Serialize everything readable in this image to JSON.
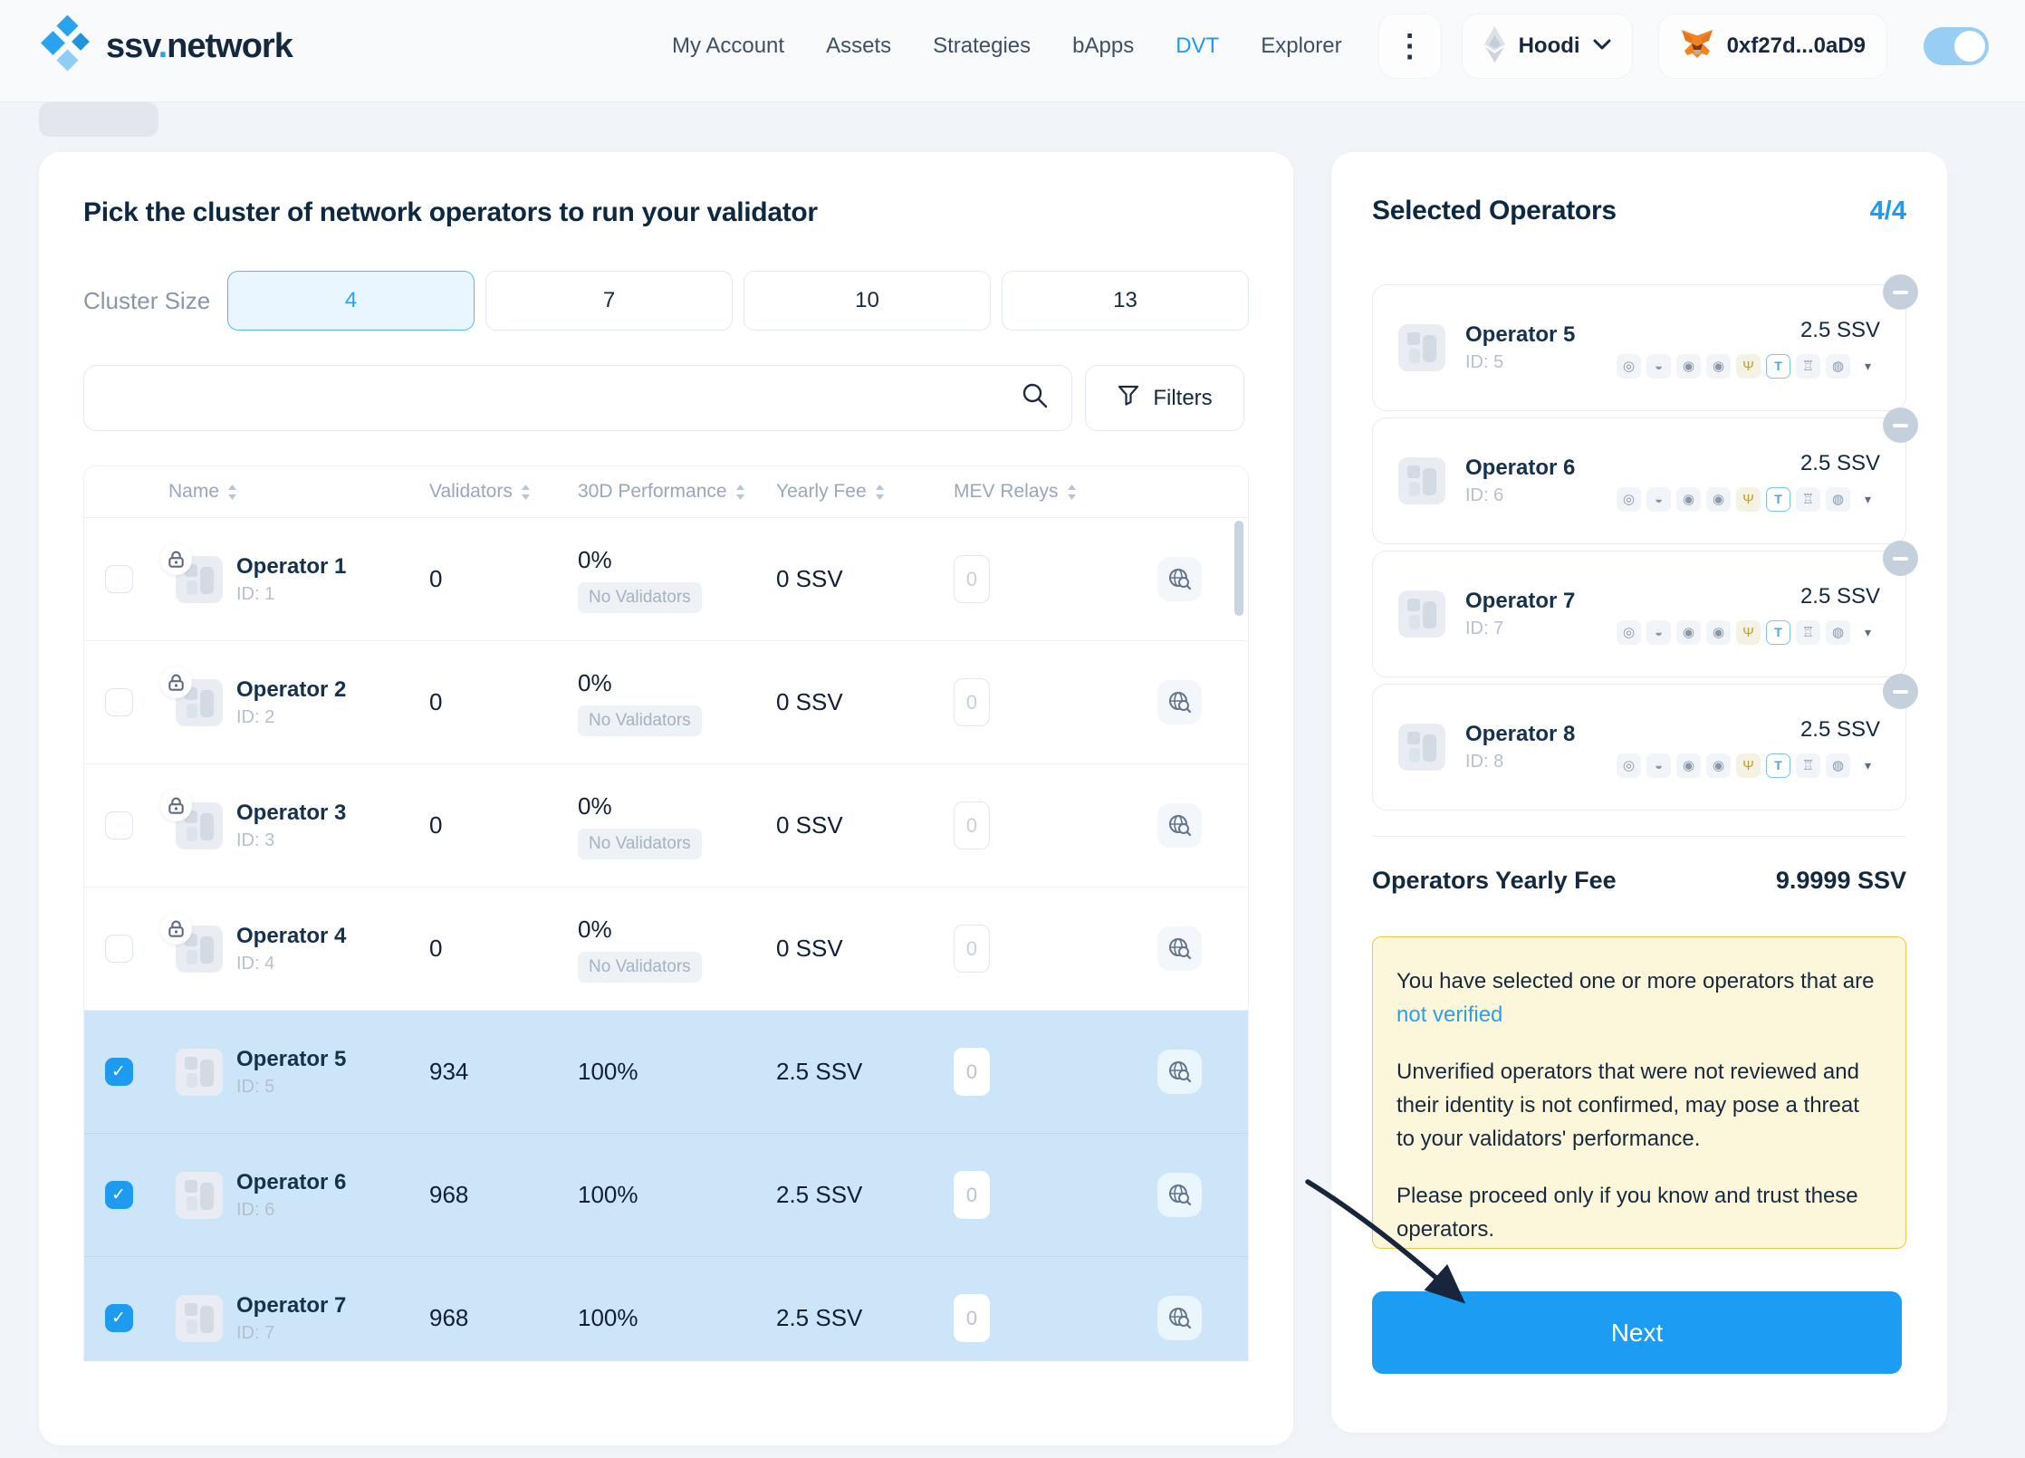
{
  "nav": {
    "logo": {
      "part1": "ssv",
      "dot": ".",
      "part2": "network"
    },
    "links": [
      {
        "label": "My Account",
        "active": false
      },
      {
        "label": "Assets",
        "active": false
      },
      {
        "label": "Strategies",
        "active": false
      },
      {
        "label": "bApps",
        "active": false
      },
      {
        "label": "DVT",
        "active": true
      },
      {
        "label": "Explorer",
        "active": false
      }
    ],
    "kebab": "⋮",
    "network": {
      "name": "Hoodi"
    },
    "wallet": {
      "address": "0xf27d...0aD9"
    }
  },
  "main": {
    "title": "Pick the cluster of network operators to run your validator",
    "cluster_size": {
      "label": "Cluster Size",
      "options": [
        {
          "value": "4",
          "selected": true
        },
        {
          "value": "7",
          "selected": false
        },
        {
          "value": "10",
          "selected": false
        },
        {
          "value": "13",
          "selected": false
        }
      ]
    },
    "search": {
      "placeholder": "",
      "value": ""
    },
    "filters_label": "Filters",
    "table": {
      "columns": [
        "Name",
        "Validators",
        "30D Performance",
        "Yearly Fee",
        "MEV Relays"
      ],
      "rows": [
        {
          "name": "Operator 1",
          "id": "ID: 1",
          "validators": "0",
          "performance": "0%",
          "badge": "No Validators",
          "fee": "0 SSV",
          "mev": "0",
          "selected": false,
          "locked": true
        },
        {
          "name": "Operator 2",
          "id": "ID: 2",
          "validators": "0",
          "performance": "0%",
          "badge": "No Validators",
          "fee": "0 SSV",
          "mev": "0",
          "selected": false,
          "locked": true
        },
        {
          "name": "Operator 3",
          "id": "ID: 3",
          "validators": "0",
          "performance": "0%",
          "badge": "No Validators",
          "fee": "0 SSV",
          "mev": "0",
          "selected": false,
          "locked": true
        },
        {
          "name": "Operator 4",
          "id": "ID: 4",
          "validators": "0",
          "performance": "0%",
          "badge": "No Validators",
          "fee": "0 SSV",
          "mev": "0",
          "selected": false,
          "locked": true
        },
        {
          "name": "Operator 5",
          "id": "ID: 5",
          "validators": "934",
          "performance": "100%",
          "badge": "",
          "fee": "2.5 SSV",
          "mev": "0",
          "selected": true,
          "locked": false
        },
        {
          "name": "Operator 6",
          "id": "ID: 6",
          "validators": "968",
          "performance": "100%",
          "badge": "",
          "fee": "2.5 SSV",
          "mev": "0",
          "selected": true,
          "locked": false
        },
        {
          "name": "Operator 7",
          "id": "ID: 7",
          "validators": "968",
          "performance": "100%",
          "badge": "",
          "fee": "2.5 SSV",
          "mev": "0",
          "selected": true,
          "locked": false
        }
      ]
    }
  },
  "sidebar": {
    "title": "Selected Operators",
    "count": "4/4",
    "operators": [
      {
        "name": "Operator 5",
        "id": "ID: 5",
        "fee": "2.5 SSV"
      },
      {
        "name": "Operator 6",
        "id": "ID: 6",
        "fee": "2.5 SSV"
      },
      {
        "name": "Operator 7",
        "id": "ID: 7",
        "fee": "2.5 SSV"
      },
      {
        "name": "Operator 8",
        "id": "ID: 8",
        "fee": "2.5 SSV"
      }
    ],
    "relay_glyphs": [
      "◎",
      "◒",
      "◉",
      "◉",
      "Ψ",
      "T",
      "♖",
      "◍",
      "▾"
    ],
    "yearly_fee_label": "Operators Yearly Fee",
    "yearly_fee_value": "9.9999 SSV",
    "warning": {
      "line1": "You have selected one or more operators that are",
      "link": "not verified",
      "para1": "Unverified operators that were not reviewed and their identity is not confirmed, may pose a threat to your validators' performance.",
      "para2": "Please proceed only if you know and trust these operators."
    },
    "next_label": "Next"
  },
  "colors": {
    "accent": "#1d9bf0",
    "selected_row": "#cde5f8",
    "warning_bg": "#fcf6da",
    "warning_border": "#ecc84a",
    "next_button": "#1d9cf3"
  }
}
